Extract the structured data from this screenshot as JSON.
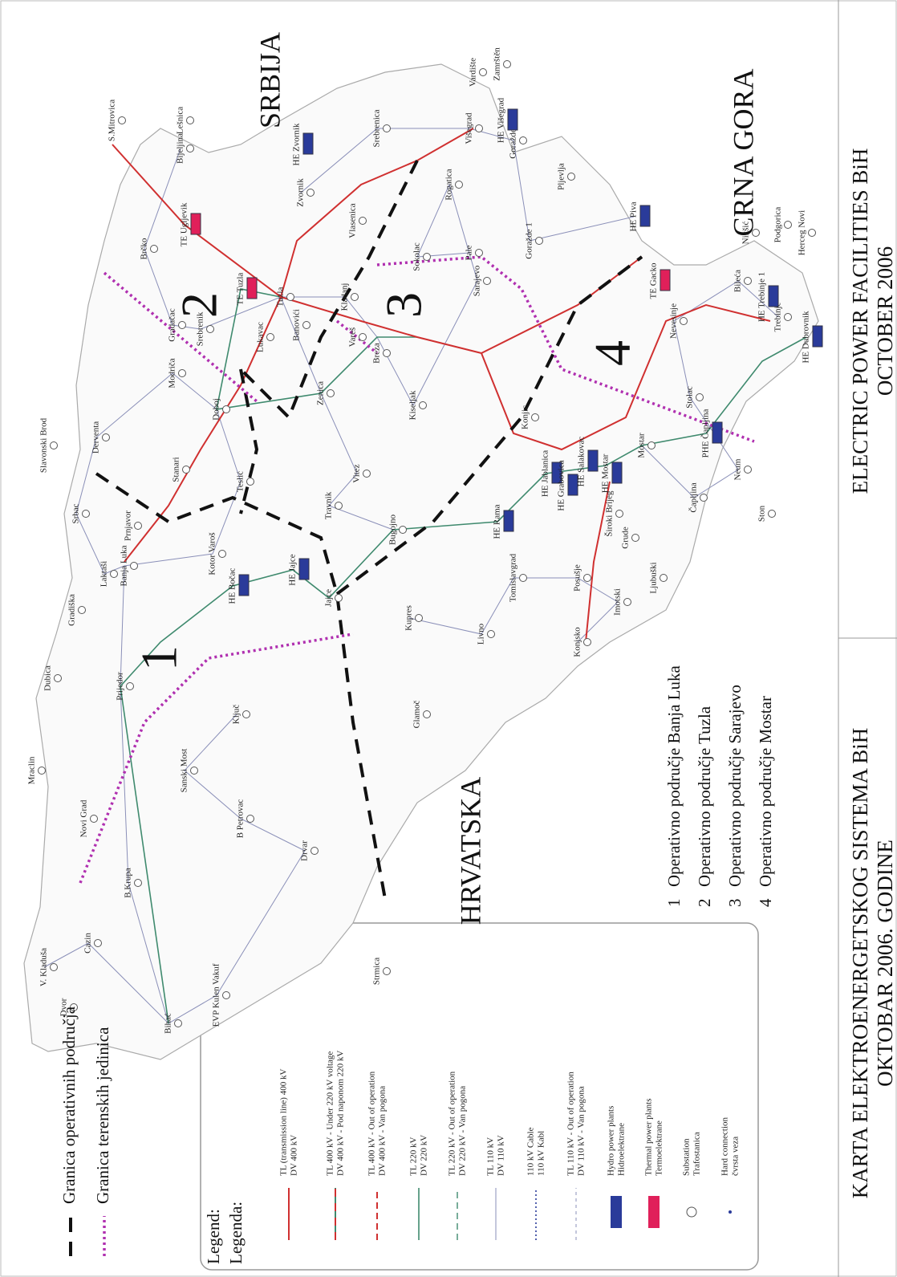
{
  "map": {
    "regions": [
      "SRBIJA",
      "CRNA GORA",
      "HRVATSKA"
    ],
    "area_numbers": [
      "1",
      "2",
      "3",
      "4"
    ],
    "places": [
      "Banja Luka",
      "Tuzla",
      "Sarajevo",
      "Mostar",
      "Zenica",
      "Bihać",
      "Prijedor",
      "Doboj",
      "Brčko",
      "Bijeljina",
      "Zvornik",
      "Višegrad",
      "Goražde 1",
      "Goražde 2",
      "Trebinje",
      "Nevesinje",
      "Konjic",
      "Jajce",
      "Livno",
      "Kupres",
      "Tomislavgrad",
      "Drvar",
      "Bugojno",
      "Travnik",
      "Vitez",
      "Kiseljak",
      "Čapljina",
      "Neum",
      "Široki Brijeg",
      "Ljubuški",
      "TE Gacko",
      "Gradiška",
      "Derventa",
      "Modriča",
      "Teslić",
      "Kotor Varoš",
      "Sanski Most",
      "Ključ",
      "B.Krupa",
      "Cazin",
      "V. Kladuša",
      "Novi Grad",
      "Dubica",
      "Laktaši",
      "Srbac",
      "Prnjavor",
      "Stanari",
      "Lukavac",
      "TE Tuzla",
      "TE Ugljevik",
      "Kladanj",
      "Vlasenica",
      "Srebrenica",
      "Rogatica",
      "Sokolac",
      "Pale",
      "HE Jablanica",
      "HE Rama",
      "HE Grabovica",
      "HE Salakovac",
      "HE Mostar",
      "HE Jajce",
      "HE Bočac",
      "HE Višegrad",
      "HE Zvornik",
      "HE Piva",
      "HE Trebinje 1",
      "HE Dubrovnik",
      "PHE Čapljina",
      "Glamoč",
      "B Petrovac",
      "EVP Kulen Vakuf",
      "Stolac",
      "Bileća",
      "Grude",
      "Posušje",
      "Imotski",
      "Konjsko",
      "Vareš",
      "Breza",
      "Banovići",
      "Srebrenik",
      "Gradačac",
      "Slavonski Brod",
      "S.Mitrovica",
      "Lešnica",
      "Vardište",
      "Zamrštěn",
      "Pljevlja",
      "Nikšić",
      "Podgorica",
      "Herceg Novi",
      "Ston",
      "Strmica",
      "Dvor",
      "Mraclin"
    ]
  },
  "boundaries": [
    "Granica operativnih područja",
    "Granica terenskih jedinica"
  ],
  "legend": {
    "title": "Legend:",
    "title_local": "Legenda:",
    "items": [
      {
        "en": "TL (transmission line) 400 kV",
        "local": "DV 400 kV"
      },
      {
        "en": "TL 400 kV - Under 220 kV voltage",
        "local": "DV 400 kV - Pod naponom 220 kV"
      },
      {
        "en": "TL 400 kV - Out of operation",
        "local": "DV 400 kV - Van pogona"
      },
      {
        "en": "TL 220 kV",
        "local": "DV 220 kV"
      },
      {
        "en": "TL 220 kV - Out of operation",
        "local": "DV 220 kV - Van pogona"
      },
      {
        "en": "TL 110 kV",
        "local": "DV 110 kV"
      },
      {
        "en": "110 kV Cable",
        "local": "110 kV Kabl"
      },
      {
        "en": "TL 110 kV - Out of operation",
        "local": "DV 110 kV - Van pogona"
      },
      {
        "en": "Hydro power plants",
        "local": "Hidroelektrane"
      },
      {
        "en": "Thermal power plants",
        "local": "Termoelektrane"
      },
      {
        "en": "Substation",
        "local": "Trafostanica"
      },
      {
        "en": "Hard connection",
        "local": "čvrsta veza"
      }
    ]
  },
  "areas": [
    {
      "number": "1",
      "name": "Operativno područje Banja Luka"
    },
    {
      "number": "2",
      "name": "Operativno područje Tuzla"
    },
    {
      "number": "3",
      "name": "Operativno područje Sarajevo"
    },
    {
      "number": "4",
      "name": "Operativno područje Mostar"
    }
  ],
  "title": {
    "local": [
      "KARTA ELEKTROENERGETSKOG SISTEMA BiH",
      "OKTOBAR 2006. GODINE"
    ],
    "en": [
      "ELECTRIC POWER FACILITIES BiH",
      "OCTOBER 2006"
    ]
  }
}
